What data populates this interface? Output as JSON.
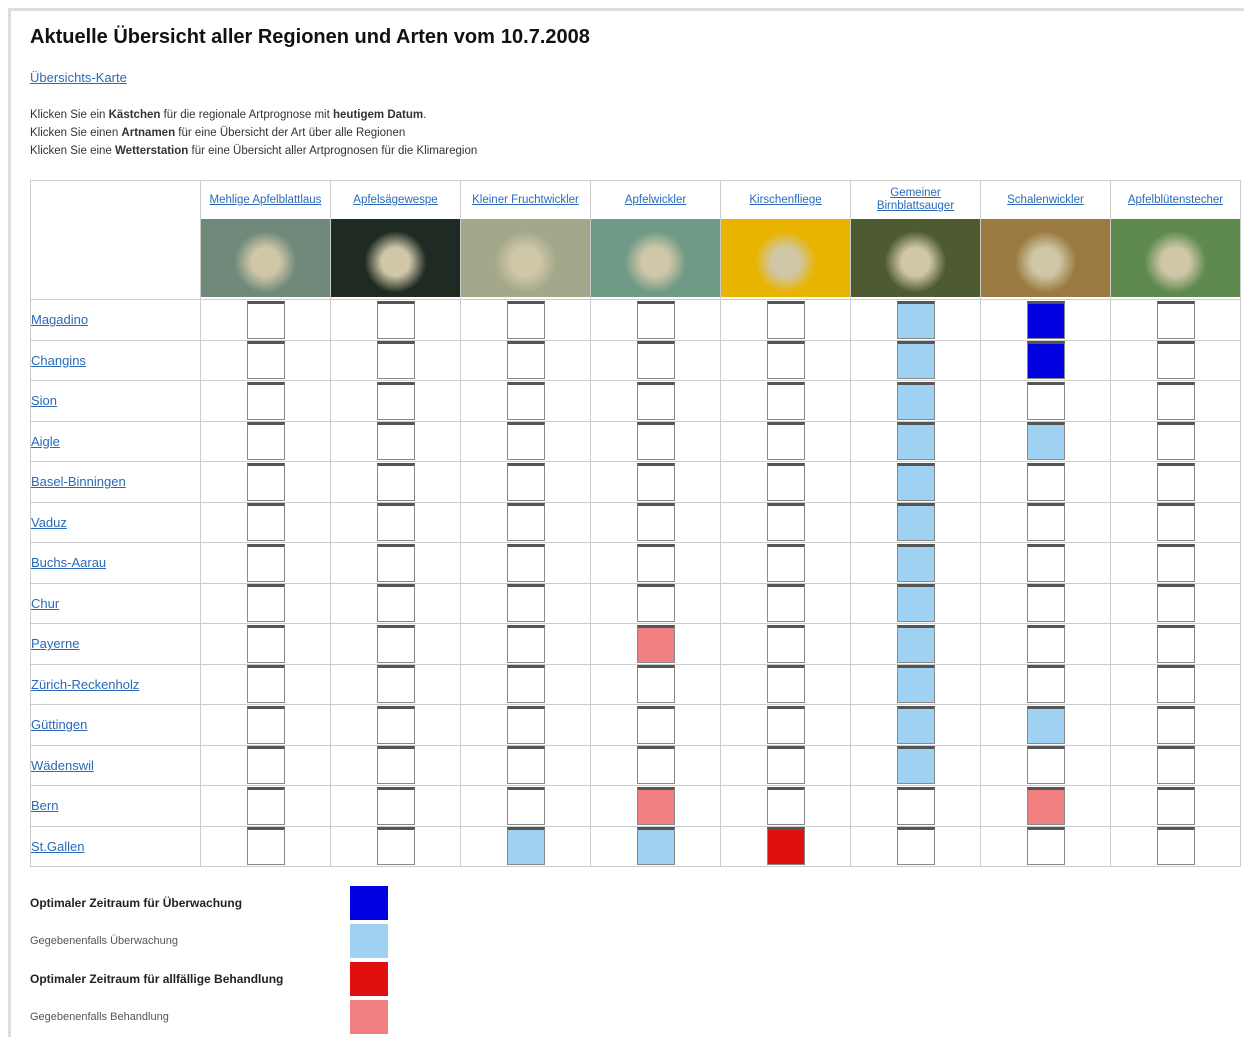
{
  "header": {
    "title": "Aktuelle Übersicht aller Regionen und Arten vom",
    "date": "10.7.2008",
    "map_link": "Übersichts-Karte"
  },
  "instructions": [
    [
      {
        "text": "Klicken Sie ein ",
        "bold": false
      },
      {
        "text": "Kästchen",
        "bold": true
      },
      {
        "text": " für die regionale Artprognose mit ",
        "bold": false
      },
      {
        "text": "heutigem Datum",
        "bold": true
      },
      {
        "text": ".",
        "bold": false
      }
    ],
    [
      {
        "text": "Klicken Sie einen ",
        "bold": false
      },
      {
        "text": "Artnamen",
        "bold": true
      },
      {
        "text": " für eine Übersicht der Art über alle Regionen",
        "bold": false
      }
    ],
    [
      {
        "text": "Klicken Sie eine ",
        "bold": false
      },
      {
        "text": "Wetterstation",
        "bold": true
      },
      {
        "text": " für eine Übersicht aller Artprognosen für die Klimaregion",
        "bold": false
      }
    ]
  ],
  "table": {
    "species": [
      {
        "name": "Mehlige Apfelblattlaus",
        "image_color": "#6f8a7a"
      },
      {
        "name": "Apfelsägewespe",
        "image_color": "#1e2a22"
      },
      {
        "name": "Kleiner Fruchtwickler",
        "image_color": "#a4a88a"
      },
      {
        "name": "Apfelwickler",
        "image_color": "#6f9a86"
      },
      {
        "name": "Kirschenfliege",
        "image_color": "#e8b400"
      },
      {
        "name": "Gemeiner Birnblattsauger",
        "image_color": "#4e5a30"
      },
      {
        "name": "Schalenwickler",
        "image_color": "#9a7a40"
      },
      {
        "name": "Apfelblütenstecher",
        "image_color": "#5e8a4e"
      }
    ],
    "stations": [
      "Magadino",
      "Changins",
      "Sion",
      "Aigle",
      "Basel-Binningen",
      "Vaduz",
      "Buchs-Aarau",
      "Chur",
      "Payerne",
      "Zürich-Reckenholz",
      "Güttingen",
      "Wädenswil",
      "Bern",
      "St.Gallen"
    ],
    "cells": [
      [
        null,
        null,
        null,
        null,
        null,
        1,
        0,
        null
      ],
      [
        null,
        null,
        null,
        null,
        null,
        1,
        0,
        null
      ],
      [
        null,
        null,
        null,
        null,
        null,
        1,
        null,
        null
      ],
      [
        null,
        null,
        null,
        null,
        null,
        1,
        1,
        null
      ],
      [
        null,
        null,
        null,
        null,
        null,
        1,
        null,
        null
      ],
      [
        null,
        null,
        null,
        null,
        null,
        1,
        null,
        null
      ],
      [
        null,
        null,
        null,
        null,
        null,
        1,
        null,
        null
      ],
      [
        null,
        null,
        null,
        null,
        null,
        1,
        null,
        null
      ],
      [
        null,
        null,
        null,
        3,
        null,
        1,
        null,
        null
      ],
      [
        null,
        null,
        null,
        null,
        null,
        1,
        null,
        null
      ],
      [
        null,
        null,
        null,
        null,
        null,
        1,
        1,
        null
      ],
      [
        null,
        null,
        null,
        null,
        null,
        1,
        null,
        null
      ],
      [
        null,
        null,
        null,
        3,
        null,
        null,
        3,
        null
      ],
      [
        null,
        null,
        1,
        1,
        2,
        null,
        null,
        null
      ]
    ]
  },
  "legend": [
    {
      "label": "Optimaler Zeitraum für Überwachung",
      "color": "#0000e0",
      "bold": true
    },
    {
      "label": "Gegebenenfalls Überwachung",
      "color": "#9fd2f2",
      "bold": false
    },
    {
      "label": "Optimaler Zeitraum für allfällige Behandlung",
      "color": "#e01010",
      "bold": true
    },
    {
      "label": "Gegebenenfalls Behandlung",
      "color": "#f08080",
      "bold": false
    }
  ]
}
